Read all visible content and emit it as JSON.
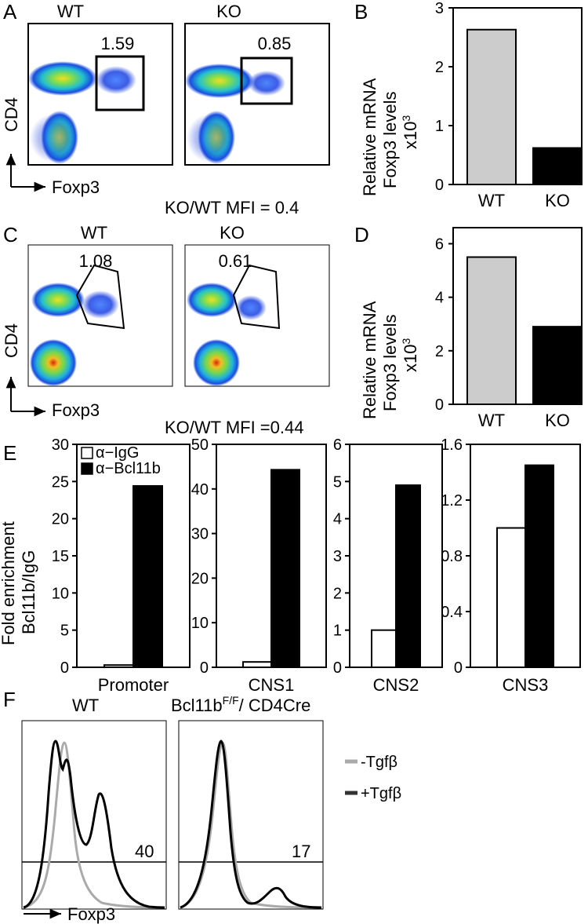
{
  "panel_labels": [
    "A",
    "B",
    "C",
    "D",
    "E",
    "F"
  ],
  "flow": {
    "A": {
      "plots": [
        {
          "genotype": "WT",
          "gate_value": "1.59"
        },
        {
          "genotype": "KO",
          "gate_value": "0.85"
        }
      ],
      "y_axis_label": "CD4",
      "x_axis_label": "Foxp3",
      "mfi_text": "KO/WT MFI = 0.4"
    },
    "C": {
      "plots": [
        {
          "genotype": "WT",
          "gate_value": "1.08"
        },
        {
          "genotype": "KO",
          "gate_value": "0.61"
        }
      ],
      "y_axis_label": "CD4",
      "x_axis_label": "Foxp3",
      "mfi_text": "KO/WT MFI =0.44"
    }
  },
  "histogram_F": {
    "plots": [
      {
        "title": "WT",
        "percent": "40"
      },
      {
        "title_main": "Bcl11b",
        "title_sup": "F/F",
        "title_rest": "/ CD4Cre",
        "percent": "17"
      }
    ],
    "x_axis_label": "Foxp3",
    "legend": [
      {
        "label": "-Tgfβ",
        "color": "#aaaaaa"
      },
      {
        "label": "+Tgfβ",
        "color": "#000000"
      }
    ]
  },
  "colors": {
    "wt_bar": "#cccccc",
    "ko_bar": "#000000",
    "igg_bar": "#ffffff",
    "bcl11b_bar": "#000000"
  },
  "chart_data": [
    {
      "panel": "B",
      "type": "bar",
      "categories": [
        "WT",
        "KO"
      ],
      "values": [
        2.63,
        0.62
      ],
      "ylabel_lines": [
        "Relative mRNA",
        "Foxp3 levels"
      ],
      "ylabel_unit": "x10",
      "ylabel_unit_sup": "3",
      "ylim": [
        0,
        3
      ],
      "yticks": [
        0,
        1,
        2,
        3
      ],
      "grid": false
    },
    {
      "panel": "D",
      "type": "bar",
      "categories": [
        "WT",
        "KO"
      ],
      "values": [
        5.5,
        2.9
      ],
      "ylabel_lines": [
        "Relative mRNA",
        "Foxp3 levels"
      ],
      "ylabel_unit": "x10",
      "ylabel_unit_sup": "3",
      "ylim": [
        0,
        6.6
      ],
      "yticks": [
        0,
        2,
        4,
        6
      ],
      "grid": false
    },
    {
      "panel": "E",
      "type": "bar",
      "ylabel_lines": [
        "Fold enrichment",
        "Bcl11b/IgG"
      ],
      "legend": [
        "α−IgG",
        "α−Bcl11b"
      ],
      "legend_position": "top-left",
      "subplots": [
        {
          "category": "Promoter",
          "series": [
            {
              "name": "α−IgG",
              "values": [
                0.3
              ]
            },
            {
              "name": "α−Bcl11b",
              "values": [
                24.4
              ]
            }
          ],
          "ylim": [
            0,
            30
          ],
          "yticks": [
            0,
            5,
            10,
            15,
            20,
            25,
            30
          ]
        },
        {
          "category": "CNS1",
          "series": [
            {
              "name": "α−IgG",
              "values": [
                1.2
              ]
            },
            {
              "name": "α−Bcl11b",
              "values": [
                44.3
              ]
            }
          ],
          "ylim": [
            0,
            50
          ],
          "yticks": [
            0,
            10,
            20,
            30,
            40,
            50
          ]
        },
        {
          "category": "CNS2",
          "series": [
            {
              "name": "α−IgG",
              "values": [
                1.0
              ]
            },
            {
              "name": "α−Bcl11b",
              "values": [
                4.9
              ]
            }
          ],
          "ylim": [
            0,
            6
          ],
          "yticks": [
            0,
            1,
            2,
            3,
            4,
            5,
            6
          ]
        },
        {
          "category": "CNS3",
          "series": [
            {
              "name": "α−IgG",
              "values": [
                1.0
              ]
            },
            {
              "name": "α−Bcl11b",
              "values": [
                1.45
              ]
            }
          ],
          "ylim": [
            0,
            1.6
          ],
          "yticks": [
            0,
            0.4,
            0.8,
            1.2,
            1.6
          ]
        }
      ]
    }
  ]
}
